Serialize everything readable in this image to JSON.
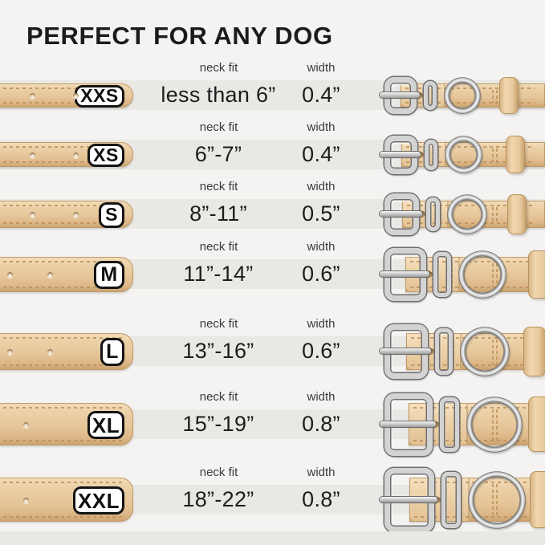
{
  "title": "PERFECT FOR ANY DOG",
  "columns": {
    "neck_fit": "neck fit",
    "width": "width"
  },
  "rows": [
    {
      "size": "XXS",
      "neck_fit": "less than 6”",
      "width": "0.4”"
    },
    {
      "size": "XS",
      "neck_fit": "6”-7”",
      "width": "0.4”"
    },
    {
      "size": "S",
      "neck_fit": "8”-11”",
      "width": "0.5”"
    },
    {
      "size": "M",
      "neck_fit": "11”-14”",
      "width": "0.6”"
    },
    {
      "size": "L",
      "neck_fit": "13”-16”",
      "width": "0.6”"
    },
    {
      "size": "XL",
      "neck_fit": "15”-19”",
      "width": "0.8”"
    },
    {
      "size": "XXL",
      "neck_fit": "18”-22”",
      "width": "0.8”"
    }
  ],
  "colors": {
    "background": "#f4f3f1",
    "row_band": "#e9e8e5",
    "strap_leather": "#e8c9a0",
    "strap_edge": "#bf9a67",
    "hardware_metal": "#d3d3d3",
    "badge_background": "#ffffff",
    "badge_border": "#141414",
    "text": "#1d1d1d"
  }
}
